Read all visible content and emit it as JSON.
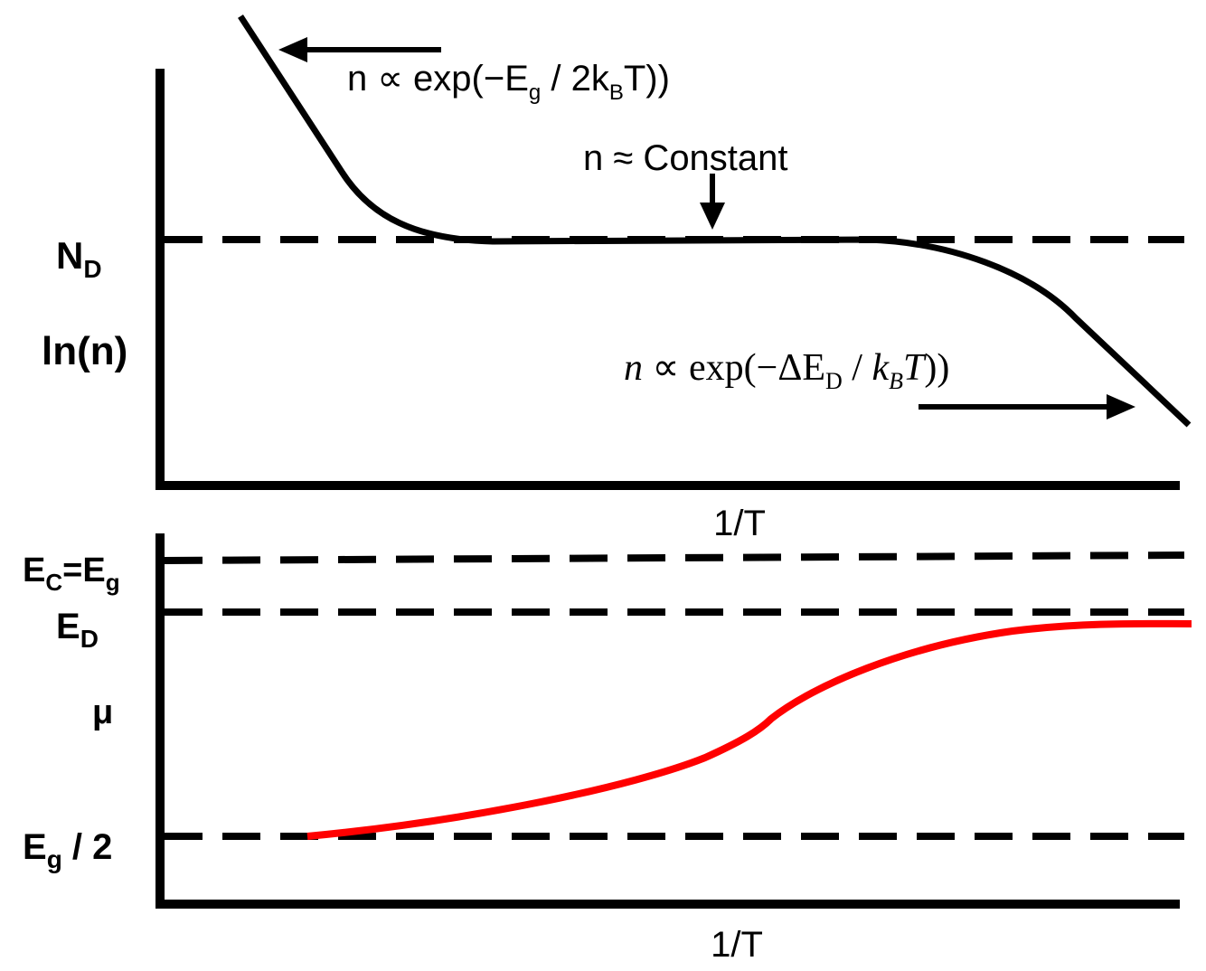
{
  "top_panel": {
    "y_axis_label": "ln(n)",
    "x_axis_label": "1/T",
    "nd_label": {
      "main": "N",
      "sub": "D"
    },
    "eq_intrinsic": {
      "p1": "n ∝ exp(−E",
      "sub1": "g",
      "p2": " / 2k",
      "sub2": "B",
      "p3": "T))"
    },
    "eq_constant": "n ≈ Constant",
    "eq_freezeout": {
      "p1": "n",
      "p2": " ∝ exp(−ΔE",
      "sub1": "D",
      "p3": " / ",
      "p4": "k",
      "sub2": "B",
      "p5": "T",
      "p6": "))"
    }
  },
  "bottom_panel": {
    "y_axis_label": "μ",
    "x_axis_label": "1/T",
    "ec_label": {
      "p1": "E",
      "sub1": "C",
      "p2": "=E",
      "sub2": "g"
    },
    "ed_label": {
      "main": "E",
      "sub": "D"
    },
    "eg2_label": {
      "main": "E",
      "sub": "g",
      "rest": " / 2"
    }
  },
  "colors": {
    "ink": "#000000",
    "mu_curve": "#ff0000"
  }
}
